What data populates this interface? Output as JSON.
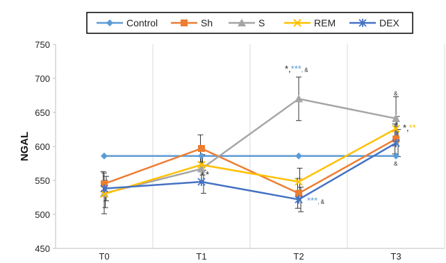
{
  "chart_data": {
    "type": "line",
    "categories": [
      "T0",
      "T1",
      "T2",
      "T3"
    ],
    "ylabel": "NGAL",
    "xlabel": "",
    "ylim": [
      450,
      750
    ],
    "yticks": [
      450,
      500,
      550,
      600,
      650,
      700,
      750
    ],
    "grid": "vertical",
    "legend_position": "top",
    "series": [
      {
        "name": "Control",
        "color": "#5B9BD5",
        "marker": "diamond",
        "values": [
          586,
          586,
          586,
          586
        ],
        "errors": [
          null,
          null,
          null,
          null
        ]
      },
      {
        "name": "Sh",
        "color": "#ED7D31",
        "marker": "square",
        "values": [
          545,
          597,
          531,
          611
        ],
        "errors": [
          18,
          20,
          22,
          22
        ]
      },
      {
        "name": "S",
        "color": "#A5A5A5",
        "marker": "triangle",
        "values": [
          531,
          567,
          670,
          641
        ],
        "errors": [
          30,
          20,
          32,
          32
        ]
      },
      {
        "name": "REM",
        "color": "#FFC000",
        "marker": "x",
        "values": [
          530,
          573,
          548,
          626
        ],
        "errors": [
          20,
          15,
          20,
          18
        ]
      },
      {
        "name": "DEX",
        "color": "#4472C4",
        "marker": "star",
        "values": [
          538,
          548,
          522,
          605
        ],
        "errors": [
          18,
          17,
          18,
          20
        ]
      }
    ],
    "annotations": [
      {
        "category": "T1",
        "value": 557,
        "parts": [
          {
            "text": "*",
            "color": "#222222"
          }
        ]
      },
      {
        "category": "T2",
        "value": 713,
        "parts": [
          {
            "text": "*,",
            "color": "#222222"
          },
          {
            "text": "***",
            "color": "#5B9BD5"
          },
          {
            "text": ", &",
            "color": "#222222",
            "small": true
          }
        ]
      },
      {
        "category": "T2",
        "value": 519,
        "parts": [
          {
            "text": "***",
            "color": "#5B9BD5"
          },
          {
            "text": ", &",
            "color": "#222222",
            "small": true
          }
        ]
      },
      {
        "category": "T3",
        "value": 626,
        "parts": [
          {
            "text": "*,",
            "color": "#222222"
          },
          {
            "text": "**",
            "color": "#FFC000"
          }
        ]
      },
      {
        "category": "T3",
        "value": 678,
        "parts": [
          {
            "text": "&",
            "color": "#222222",
            "small": true
          }
        ]
      },
      {
        "category": "T3",
        "value": 575,
        "parts": [
          {
            "text": "&",
            "color": "#222222",
            "small": true
          }
        ]
      }
    ]
  }
}
